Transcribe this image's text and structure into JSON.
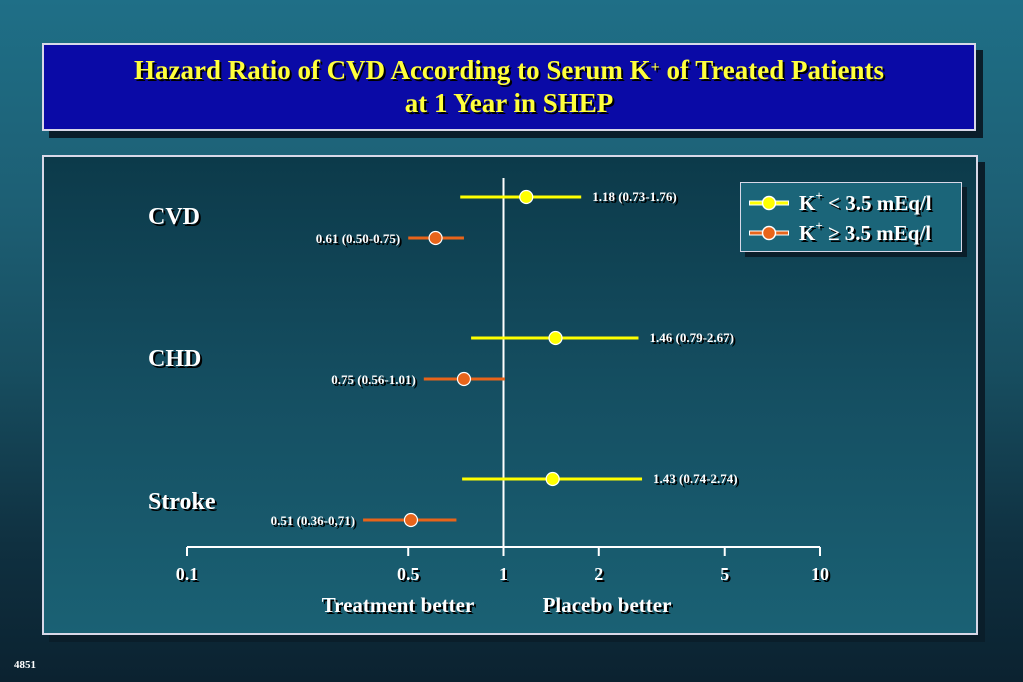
{
  "slide": {
    "title_line1_pre": "Hazard Ratio of CVD According to Serum K",
    "title_sup": "+",
    "title_line1_post": " of Treated Patients",
    "title_line2": "at 1 Year in SHEP",
    "slide_number": "4851"
  },
  "legend": {
    "items": [
      {
        "prefix": "K",
        "sup": "+",
        "op": " < ",
        "rest": "3.5 mEq/l",
        "color": "#ffff00"
      },
      {
        "prefix": "K",
        "sup": "+",
        "op": " ≥ ",
        "rest": "3.5 mEq/l",
        "color": "#e8641a"
      }
    ]
  },
  "colors": {
    "low_k": "#ffff00",
    "high_k": "#e8641a",
    "axis": "#ffffff",
    "label": "#ffffff"
  },
  "chart_data": {
    "type": "forest",
    "x_scale": "log",
    "xlim": [
      0.1,
      10
    ],
    "x_ticks": [
      0.1,
      0.5,
      1,
      2,
      5,
      10
    ],
    "x_tick_labels": [
      "0.1",
      "0.5",
      "1",
      "2",
      "5",
      "10"
    ],
    "reference_line": 1,
    "x_annotations": [
      "Treatment better",
      "Placebo better"
    ],
    "groups": [
      "CVD",
      "CHD",
      "Stroke"
    ],
    "series": [
      {
        "name": "K+ < 3.5 mEq/l",
        "points": [
          {
            "group": "CVD",
            "hr": 1.18,
            "lo": 0.73,
            "hi": 1.76,
            "label": "1.18 (0.73-1.76)"
          },
          {
            "group": "CHD",
            "hr": 1.46,
            "lo": 0.79,
            "hi": 2.67,
            "label": "1.46 (0.79-2.67)"
          },
          {
            "group": "Stroke",
            "hr": 1.43,
            "lo": 0.74,
            "hi": 2.74,
            "label": "1.43 (0.74-2.74)"
          }
        ]
      },
      {
        "name": "K+ ≥ 3.5 mEq/l",
        "points": [
          {
            "group": "CVD",
            "hr": 0.61,
            "lo": 0.5,
            "hi": 0.75,
            "label": "0.61 (0.50-0.75)"
          },
          {
            "group": "CHD",
            "hr": 0.75,
            "lo": 0.56,
            "hi": 1.01,
            "label": "0.75 (0.56-1.01)"
          },
          {
            "group": "Stroke",
            "hr": 0.51,
            "lo": 0.36,
            "hi": 0.71,
            "label": "0.51 (0.36-0,71)"
          }
        ]
      }
    ]
  }
}
